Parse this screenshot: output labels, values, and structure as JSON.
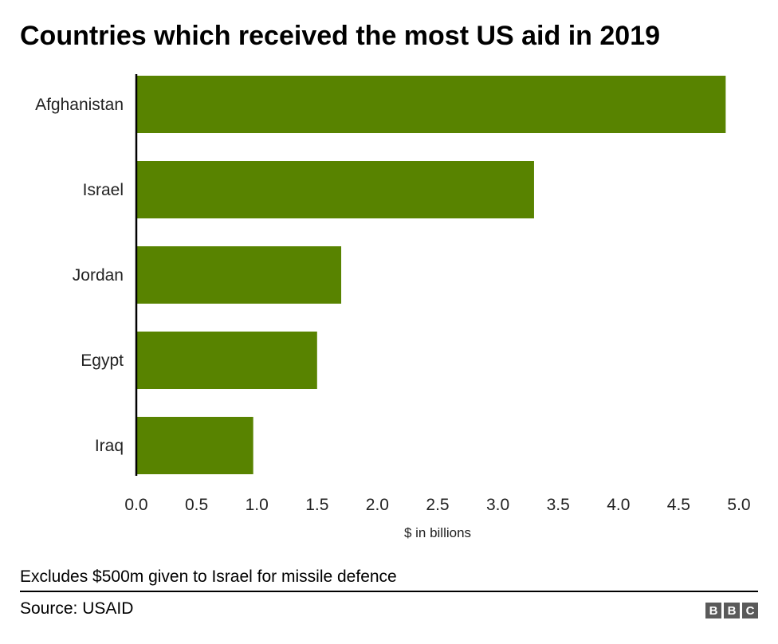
{
  "chart_data": {
    "type": "bar",
    "orientation": "horizontal",
    "title": "Countries which received the most US aid in 2019",
    "categories": [
      "Afghanistan",
      "Israel",
      "Jordan",
      "Egypt",
      "Iraq"
    ],
    "values": [
      4.89,
      3.3,
      1.7,
      1.5,
      0.97
    ],
    "xlabel": "$ in billions",
    "xlim": [
      0,
      5
    ],
    "xticks": [
      "0.0",
      "0.5",
      "1.0",
      "1.5",
      "2.0",
      "2.5",
      "3.0",
      "3.5",
      "4.0",
      "4.5",
      "5.0"
    ],
    "grid": false,
    "bar_color": "#588300"
  },
  "footer": {
    "note": "Excludes $500m given to Israel for missile defence",
    "source": "Source: USAID",
    "logo": [
      "B",
      "B",
      "C"
    ]
  }
}
